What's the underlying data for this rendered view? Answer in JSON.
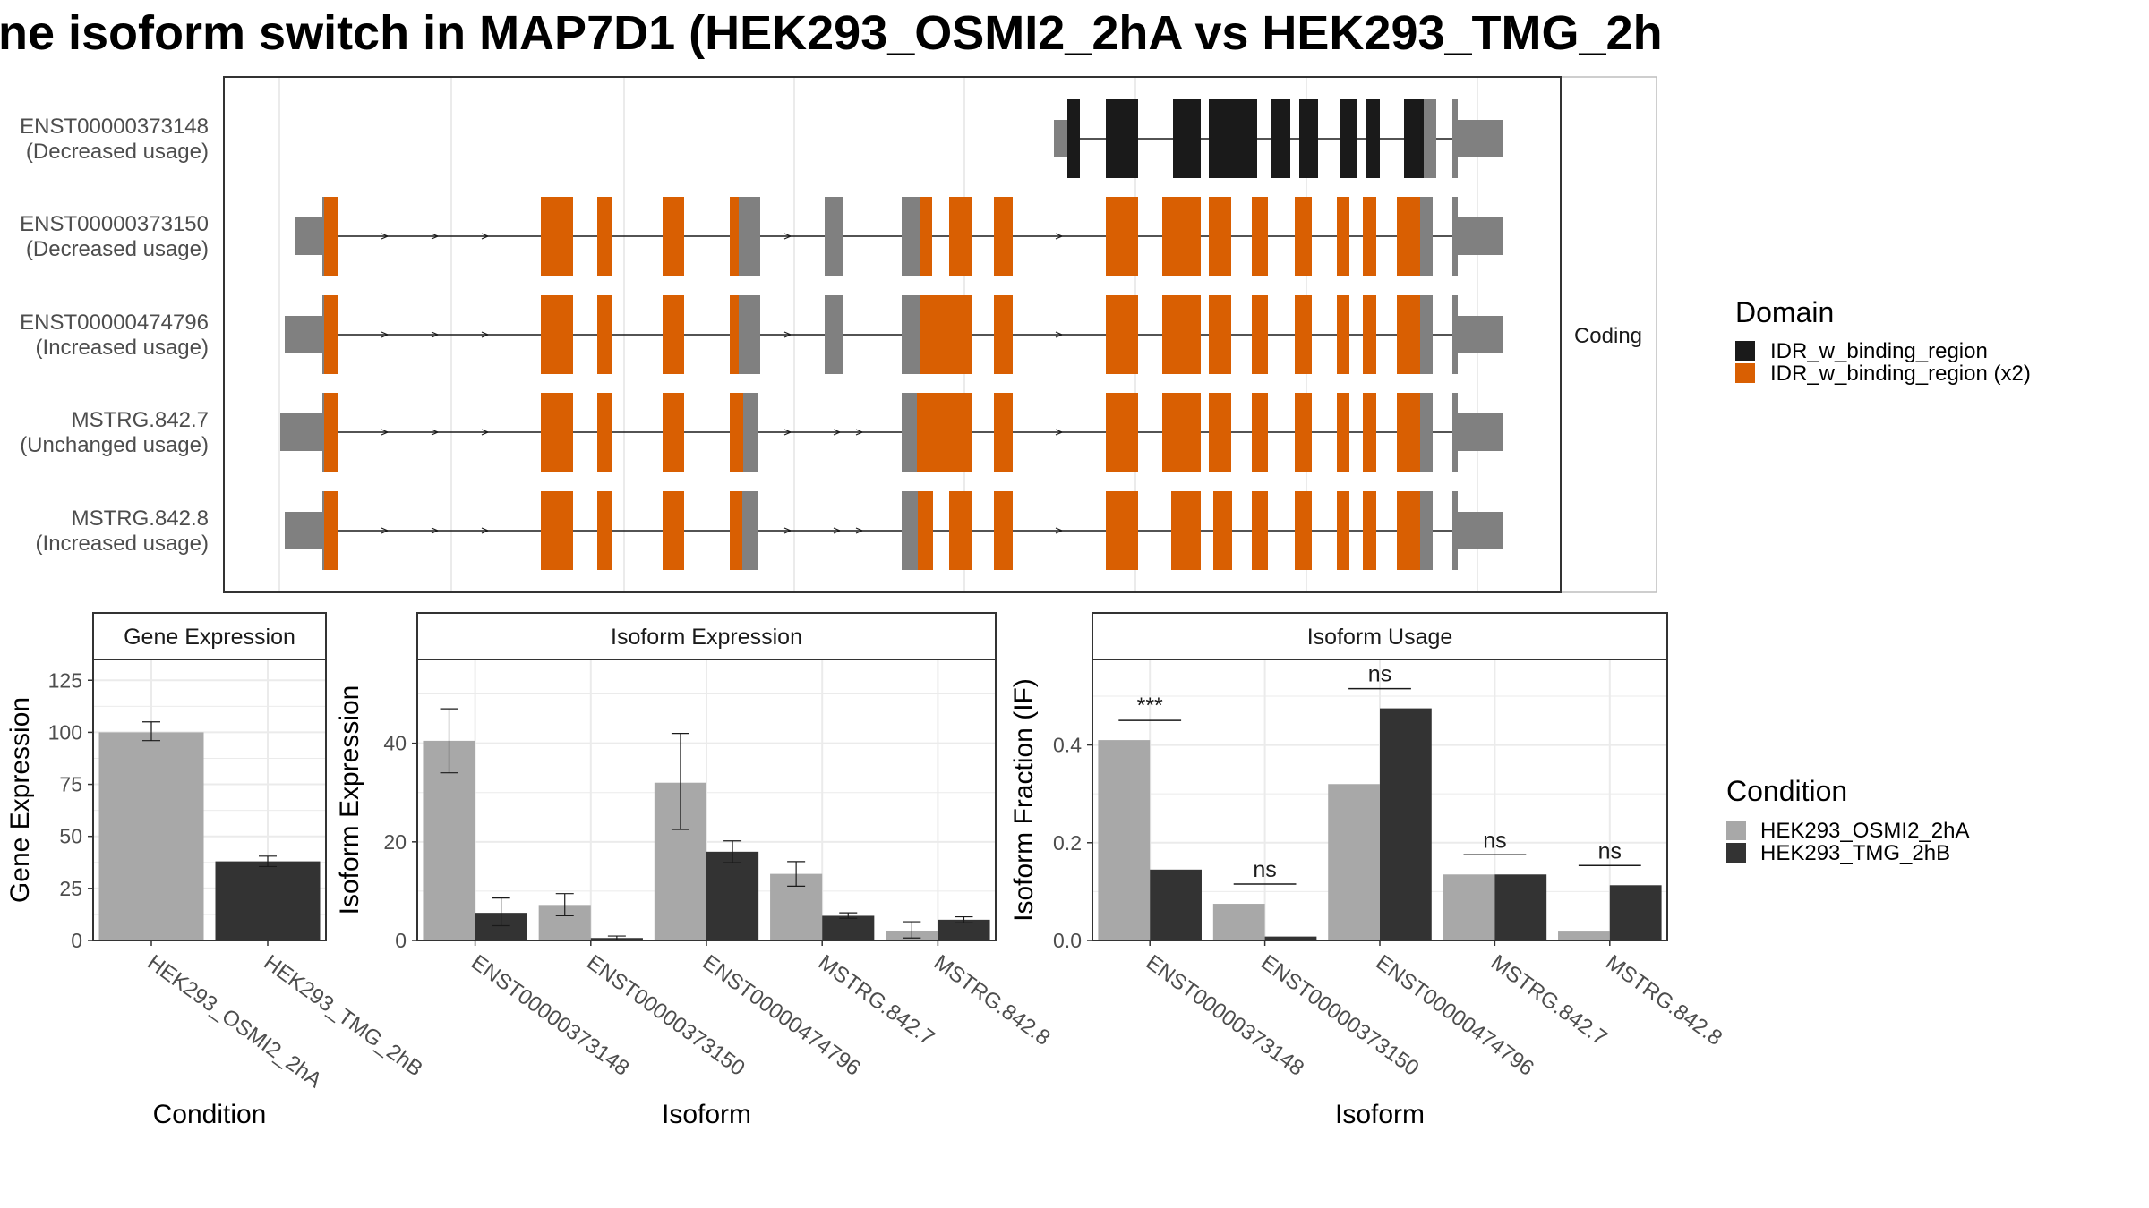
{
  "title": "ne isoform switch in MAP7D1 (HEK293_OSMI2_2hA vs HEK293_TMG_2h",
  "colors": {
    "domain_single": "#1a1a1a",
    "domain_double": "#d95f02",
    "utr": "#808080",
    "cond_a": "#a8a8a8",
    "cond_b": "#333333",
    "panel_border": "#333333",
    "strip_fill": "#ffffff",
    "grid": "#ebebeb"
  },
  "structure": {
    "facet_label": "Coding",
    "transcripts": [
      {
        "id": "ENST00000373148",
        "usage": "(Decreased usage)"
      },
      {
        "id": "ENST00000373150",
        "usage": "(Decreased usage)"
      },
      {
        "id": "ENST00000474796",
        "usage": "(Increased usage)"
      },
      {
        "id": "MSTRG.842.7",
        "usage": "(Unchanged usage)"
      },
      {
        "id": "MSTRG.842.8",
        "usage": "(Increased usage)"
      }
    ]
  },
  "legends": {
    "domain": {
      "title": "Domain",
      "entries": [
        "IDR_w_binding_region",
        "IDR_w_binding_region (x2)"
      ]
    },
    "condition": {
      "title": "Condition",
      "entries": [
        "HEK293_OSMI2_2hA",
        "HEK293_TMG_2hB"
      ]
    }
  },
  "chart_data": [
    {
      "type": "bar",
      "title": "Gene Expression",
      "xlabel": "Condition",
      "ylabel": "Gene Expression",
      "categories": [
        "HEK293_OSMI2_2hA",
        "HEK293_TMG_2hB"
      ],
      "values": [
        100,
        38
      ],
      "error_low": [
        96,
        35.5
      ],
      "error_high": [
        105,
        40.5
      ],
      "ylim": [
        0,
        135
      ],
      "yticks": [
        "0",
        "25",
        "50",
        "75",
        "100",
        "125"
      ],
      "grid": true
    },
    {
      "type": "bar",
      "title": "Isoform Expression",
      "xlabel": "Isoform",
      "ylabel": "Isoform Expression",
      "categories": [
        "ENST00000373148",
        "ENST00000373150",
        "ENST00000474796",
        "MSTRG.842.7",
        "MSTRG.842.8"
      ],
      "series": [
        {
          "name": "HEK293_OSMI2_2hA",
          "values": [
            40.5,
            7.2,
            32.0,
            13.5,
            2.0
          ],
          "error_low": [
            34.0,
            5.0,
            22.5,
            11.0,
            0.5
          ],
          "error_high": [
            47.0,
            9.5,
            42.0,
            16.0,
            3.8
          ]
        },
        {
          "name": "HEK293_TMG_2hB",
          "values": [
            5.6,
            0.5,
            18.0,
            5.0,
            4.2
          ],
          "error_low": [
            3.0,
            0.1,
            15.8,
            4.5,
            3.6
          ],
          "error_high": [
            8.6,
            0.9,
            20.2,
            5.6,
            4.8
          ]
        }
      ],
      "ylim": [
        0,
        57
      ],
      "yticks": [
        "0",
        "20",
        "40"
      ],
      "grid": true
    },
    {
      "type": "bar",
      "title": "Isoform Usage",
      "xlabel": "Isoform",
      "ylabel": "Isoform Fraction (IF)",
      "categories": [
        "ENST00000373148",
        "ENST00000373150",
        "ENST00000474796",
        "MSTRG.842.7",
        "MSTRG.842.8"
      ],
      "series": [
        {
          "name": "HEK293_OSMI2_2hA",
          "values": [
            0.41,
            0.075,
            0.32,
            0.135,
            0.02
          ]
        },
        {
          "name": "HEK293_TMG_2hB",
          "values": [
            0.145,
            0.008,
            0.475,
            0.135,
            0.113
          ]
        }
      ],
      "significance": [
        "***",
        "ns",
        "ns",
        "ns",
        "ns"
      ],
      "ylim": [
        0,
        0.575
      ],
      "yticks": [
        "0.0",
        "0.2",
        "0.4"
      ],
      "grid": true
    }
  ]
}
